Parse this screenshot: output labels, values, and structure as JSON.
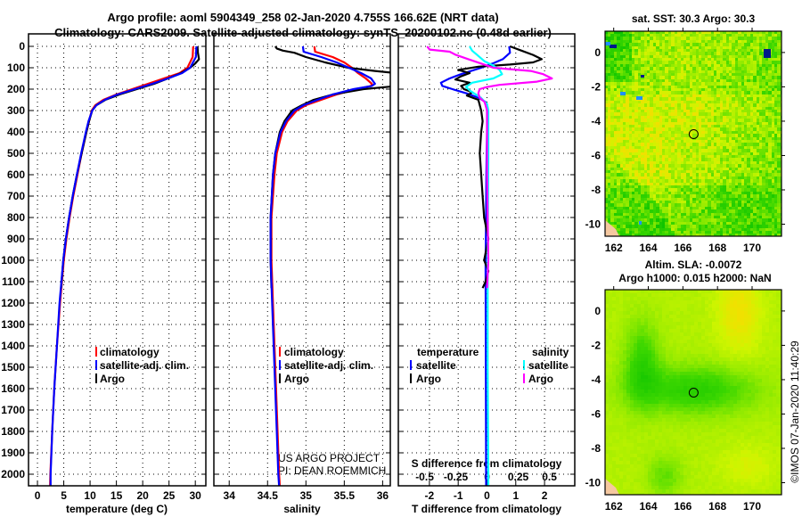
{
  "titles": {
    "line1": "Argo profile: aoml 5904349_258 02-Jan-2020 4.755S 166.62E (NRT data)",
    "line2": "Climatology: CARS2009. Satellite-adjusted climatology: synTS_20200102.nc (0.48d earlier)"
  },
  "legends": {
    "temperature": [
      "climatology",
      "satellite-adj. clim.",
      "Argo"
    ],
    "salinity": [
      "climatology",
      "satellite-adj. clim.",
      "Argo"
    ],
    "diff_temperature_header": "temperature",
    "diff_temperature": [
      "satellite",
      "Argo"
    ],
    "diff_salinity_header": "salinity",
    "diff_salinity": [
      "satellite",
      "Argo"
    ]
  },
  "credits": {
    "line1": "US ARGO PROJECT",
    "line2": "PI: DEAN ROEMMICH"
  },
  "maps": {
    "sst_title": "sat. SST: 30.3 Argo: 30.3",
    "sla_title1": "Altim. SLA: -0.0072",
    "sla_title2": "Argo h1000: 0.015 h2000: NaN"
  },
  "stamp": "©IMOS 07-Jan-2020 11:40:29",
  "colors": {
    "climatology": "#ff0000",
    "satellite": "#0000ff",
    "argo": "#000000",
    "s_satellite": "#00ffff",
    "s_argo": "#ff00ff"
  },
  "chart_data": [
    {
      "type": "line",
      "name": "temperature",
      "xlabel": "temperature (deg C)",
      "ylabel": "pressure (dbar)",
      "xlim": [
        -1.7,
        32
      ],
      "ylim": [
        2055,
        0
      ],
      "xticks": [
        0,
        5,
        10,
        15,
        20,
        25,
        30
      ],
      "yticks": [
        0,
        100,
        200,
        300,
        400,
        500,
        600,
        700,
        800,
        900,
        1000,
        1100,
        1200,
        1300,
        1400,
        1500,
        1600,
        1700,
        1800,
        1900,
        2000
      ],
      "grid": true,
      "series": [
        {
          "name": "climatology",
          "color": "#ff0000",
          "depth": [
            0,
            50,
            100,
            125,
            150,
            175,
            200,
            225,
            250,
            275,
            300,
            350,
            400,
            500,
            600,
            700,
            800,
            900,
            1000,
            1200,
            1400,
            1600,
            1800,
            2000,
            2055
          ],
          "values": [
            29.6,
            29.5,
            28.5,
            27,
            24,
            21,
            18,
            15,
            12.5,
            11,
            10.3,
            9.8,
            9.3,
            8.4,
            7.6,
            6.8,
            6.1,
            5.5,
            5.0,
            4.3,
            3.7,
            3.2,
            2.8,
            2.45,
            2.4
          ]
        },
        {
          "name": "Argo",
          "color": "#000000",
          "depth": [
            0,
            30,
            60,
            80,
            100,
            125,
            150,
            175,
            200,
            225,
            250,
            275,
            300,
            350,
            400,
            500,
            600,
            700,
            800,
            900,
            1000,
            1130
          ],
          "values": [
            30.4,
            30.5,
            30.7,
            30.0,
            29.0,
            27.3,
            24.8,
            22.2,
            18.9,
            15.6,
            12.9,
            11.2,
            10.4,
            9.8,
            9.3,
            8.4,
            7.5,
            6.7,
            6.0,
            5.4,
            4.9,
            4.5
          ]
        },
        {
          "name": "satellite-adj. clim.",
          "color": "#0000ff",
          "depth": [
            0,
            50,
            100,
            125,
            150,
            175,
            200,
            225,
            250,
            275,
            300,
            350,
            400,
            500,
            600,
            700,
            800,
            900,
            1000,
            1200,
            1400,
            1600,
            1800,
            2000,
            2055
          ],
          "values": [
            30.2,
            30.1,
            29.0,
            27.5,
            24.8,
            21.8,
            18.5,
            15.2,
            12.8,
            11.2,
            10.4,
            9.7,
            9.2,
            8.3,
            7.5,
            6.7,
            6.0,
            5.4,
            4.9,
            4.2,
            3.7,
            3.2,
            2.8,
            2.5,
            2.5
          ]
        }
      ]
    },
    {
      "type": "line",
      "name": "salinity",
      "xlabel": "salinity",
      "xlim": [
        33.8,
        36.1
      ],
      "ylim": [
        2055,
        0
      ],
      "xticks": [
        34,
        34.5,
        35,
        35.5,
        36
      ],
      "grid": true,
      "series": [
        {
          "name": "climatology",
          "color": "#ff0000",
          "depth": [
            0,
            25,
            50,
            75,
            100,
            125,
            150,
            175,
            185,
            200,
            225,
            250,
            275,
            300,
            350,
            400,
            500,
            600,
            800,
            1000,
            1200,
            1500,
            1800,
            2000,
            2055
          ],
          "values": [
            35.11,
            35.12,
            35.35,
            35.5,
            35.6,
            35.68,
            35.78,
            35.86,
            35.85,
            35.65,
            35.4,
            35.2,
            35.0,
            34.88,
            34.76,
            34.69,
            34.62,
            34.59,
            34.55,
            34.55,
            34.57,
            34.6,
            34.63,
            34.65,
            34.66
          ]
        },
        {
          "name": "Argo",
          "color": "#000000",
          "depth": [
            0,
            10,
            20,
            30,
            50,
            75,
            100,
            115,
            130,
            145,
            160,
            175,
            185,
            200,
            225,
            250,
            275,
            300,
            350,
            400,
            500,
            600,
            800,
            1000,
            1130
          ],
          "values": [
            34.6,
            34.62,
            34.7,
            34.85,
            35.0,
            35.25,
            35.55,
            35.9,
            36.3,
            36.4,
            36.4,
            36.4,
            36.2,
            35.75,
            35.35,
            35.1,
            34.95,
            34.82,
            34.72,
            34.66,
            34.6,
            34.57,
            34.54,
            34.54,
            34.55
          ]
        },
        {
          "name": "satellite-adj. clim.",
          "color": "#0000ff",
          "depth": [
            0,
            25,
            50,
            75,
            100,
            125,
            150,
            175,
            185,
            200,
            225,
            250,
            275,
            300,
            350,
            400,
            500,
            600,
            800,
            1000,
            1200,
            1500,
            1800,
            2000,
            2055
          ],
          "values": [
            34.96,
            34.97,
            35.2,
            35.4,
            35.56,
            35.72,
            35.85,
            35.9,
            35.86,
            35.62,
            35.35,
            35.15,
            34.97,
            34.85,
            34.74,
            34.67,
            34.6,
            34.57,
            34.54,
            34.54,
            34.56,
            34.59,
            34.62,
            34.64,
            34.65
          ]
        }
      ]
    },
    {
      "type": "line",
      "name": "difference",
      "xlabel": "T difference from climatology",
      "xlabel2": "S difference from climatology",
      "xlim": [
        -3.08,
        3.05
      ],
      "xlim2": [
        -0.711,
        0.703
      ],
      "ylim": [
        2055,
        0
      ],
      "xticks": [
        -2,
        -1,
        0,
        1,
        2
      ],
      "xticks2": [
        -0.5,
        -0.25,
        0,
        0.25,
        0.5
      ],
      "grid": true,
      "series": [
        {
          "name": "temperature satellite",
          "axis": "T",
          "color": "#0000ff",
          "depth": [
            0,
            30,
            60,
            80,
            100,
            130,
            150,
            170,
            185,
            200,
            220,
            240,
            260,
            300,
            400,
            600,
            800,
            1000,
            1500,
            2000,
            2055
          ],
          "values": [
            0.77,
            0.8,
            0.55,
            0.2,
            -0.2,
            -0.9,
            -1.3,
            -1.6,
            -1.55,
            -1.2,
            -0.7,
            -0.3,
            -0.05,
            0,
            0,
            -0.02,
            -0.03,
            -0.05,
            -0.04,
            -0.03,
            -0.03
          ]
        },
        {
          "name": "temperature Argo",
          "axis": "T",
          "color": "#000000",
          "depth": [
            0,
            20,
            40,
            60,
            75,
            85,
            95,
            110,
            125,
            140,
            155,
            170,
            185,
            200,
            215,
            230,
            250,
            275,
            300,
            350,
            400,
            500,
            600,
            700,
            800,
            900,
            1000,
            1050,
            1100,
            1130
          ],
          "values": [
            0.8,
            1.2,
            1.6,
            1.9,
            1.6,
            0.8,
            -0.3,
            -1.0,
            -0.6,
            -0.9,
            -1.1,
            -0.6,
            -0.9,
            -0.8,
            -0.5,
            -0.7,
            -0.3,
            -0.25,
            -0.2,
            -0.15,
            -0.2,
            -0.25,
            -0.2,
            -0.15,
            -0.1,
            0.05,
            -0.1,
            0.05,
            -0.05,
            -0.15
          ]
        },
        {
          "name": "salinity satellite",
          "axis": "S",
          "color": "#00ffff",
          "depth": [
            0,
            20,
            40,
            70,
            90,
            110,
            130,
            150,
            170,
            190,
            210,
            240,
            270,
            300,
            500,
            1000,
            1500,
            2000,
            2055
          ],
          "values": [
            -0.14,
            -0.12,
            -0.08,
            -0.02,
            0.05,
            0.1,
            0.12,
            0.05,
            -0.12,
            -0.17,
            -0.13,
            -0.05,
            0,
            0.01,
            0.01,
            0.005,
            0.005,
            0.01,
            0.01
          ]
        },
        {
          "name": "salinity Argo",
          "axis": "S",
          "color": "#ff00ff",
          "depth": [
            0,
            15,
            25,
            40,
            60,
            80,
            100,
            115,
            130,
            150,
            165,
            180,
            190,
            200,
            220,
            240,
            260,
            300,
            400,
            600,
            1000,
            1130
          ],
          "values": [
            -0.48,
            -0.46,
            -0.3,
            -0.25,
            -0.15,
            -0.05,
            0.05,
            0.35,
            0.45,
            0.52,
            0.4,
            0.1,
            0.0,
            -0.06,
            -0.07,
            -0.06,
            -0.02,
            0.0,
            0,
            0.0,
            0.01,
            0.0
          ]
        }
      ]
    },
    {
      "type": "heatmap",
      "name": "sat. SST map",
      "lonlim": [
        161.5,
        171.7
      ],
      "latlim": [
        -10.7,
        1.24
      ],
      "xticks": [
        162,
        164,
        166,
        168,
        170
      ],
      "yticks": [
        0,
        -2,
        -4,
        -6,
        -8,
        -10
      ],
      "float_position": {
        "lon": 166.62,
        "lat": -4.755
      }
    },
    {
      "type": "heatmap",
      "name": "Altimetry SLA map",
      "lonlim": [
        161.5,
        171.7
      ],
      "latlim": [
        -10.7,
        1.24
      ],
      "xticks": [
        162,
        164,
        166,
        168,
        170
      ],
      "yticks": [
        0,
        -2,
        -4,
        -6,
        -8,
        -10
      ],
      "float_position": {
        "lon": 166.62,
        "lat": -4.755
      }
    }
  ]
}
